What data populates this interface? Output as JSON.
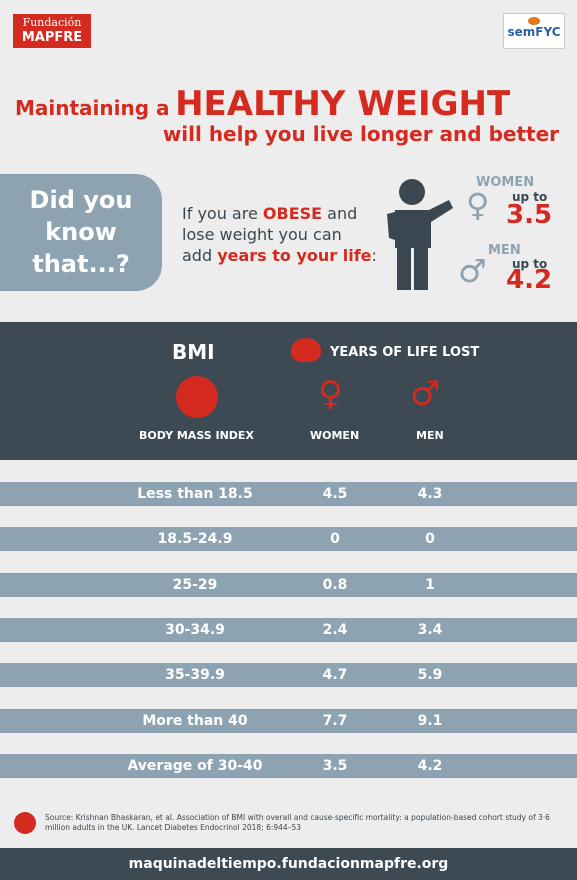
{
  "header": {
    "logo_left": [
      "Fundación",
      "MAPFRE"
    ],
    "logo_right": "semFYC",
    "title": {
      "line1_prefix": "Maintaining a",
      "line1_emphasis": "HEALTHY WEIGHT",
      "line2": "will help you live longer and better"
    }
  },
  "did_you_know": {
    "question": [
      "Did you",
      "know",
      "that...?"
    ],
    "text": [
      "If you are ",
      "OBESE",
      " and",
      "lose weight you can",
      "add ",
      "years to your life",
      ":"
    ],
    "women": {
      "label": "WOMEN",
      "prefix": "up to",
      "value": 3.5
    },
    "men": {
      "label": "MEN",
      "prefix": "up to",
      "value": 4.2
    }
  },
  "table": {
    "header": {
      "bmi": "BMI",
      "years": "YEARS OF LIFE LOST",
      "bmi_full": "BODY MASS INDEX",
      "women": "WOMEN",
      "men": "MEN"
    },
    "rows": [
      [
        "Less than 18.5",
        4.5,
        4.3
      ],
      [
        "18.5-24.9",
        0,
        0
      ],
      [
        "25-29",
        0.8,
        1
      ],
      [
        "30-34.9",
        2.4,
        3.4
      ],
      [
        "35-39.9",
        4.7,
        5.9
      ],
      [
        "More than 40",
        7.7,
        9.1
      ],
      [
        "Average of 30-40",
        3.5,
        4.2
      ]
    ]
  },
  "source": "Source: Krishnan Bhaskaran, et al. Association of BMI with overall and cause-specific mortality: a population-based cohort study of 3·6 million adults in the UK. Lancet Diabetes Endocrinol 2018; 6:944–53",
  "footer": "maquinadeltiempo.fundacionmapfre.org"
}
